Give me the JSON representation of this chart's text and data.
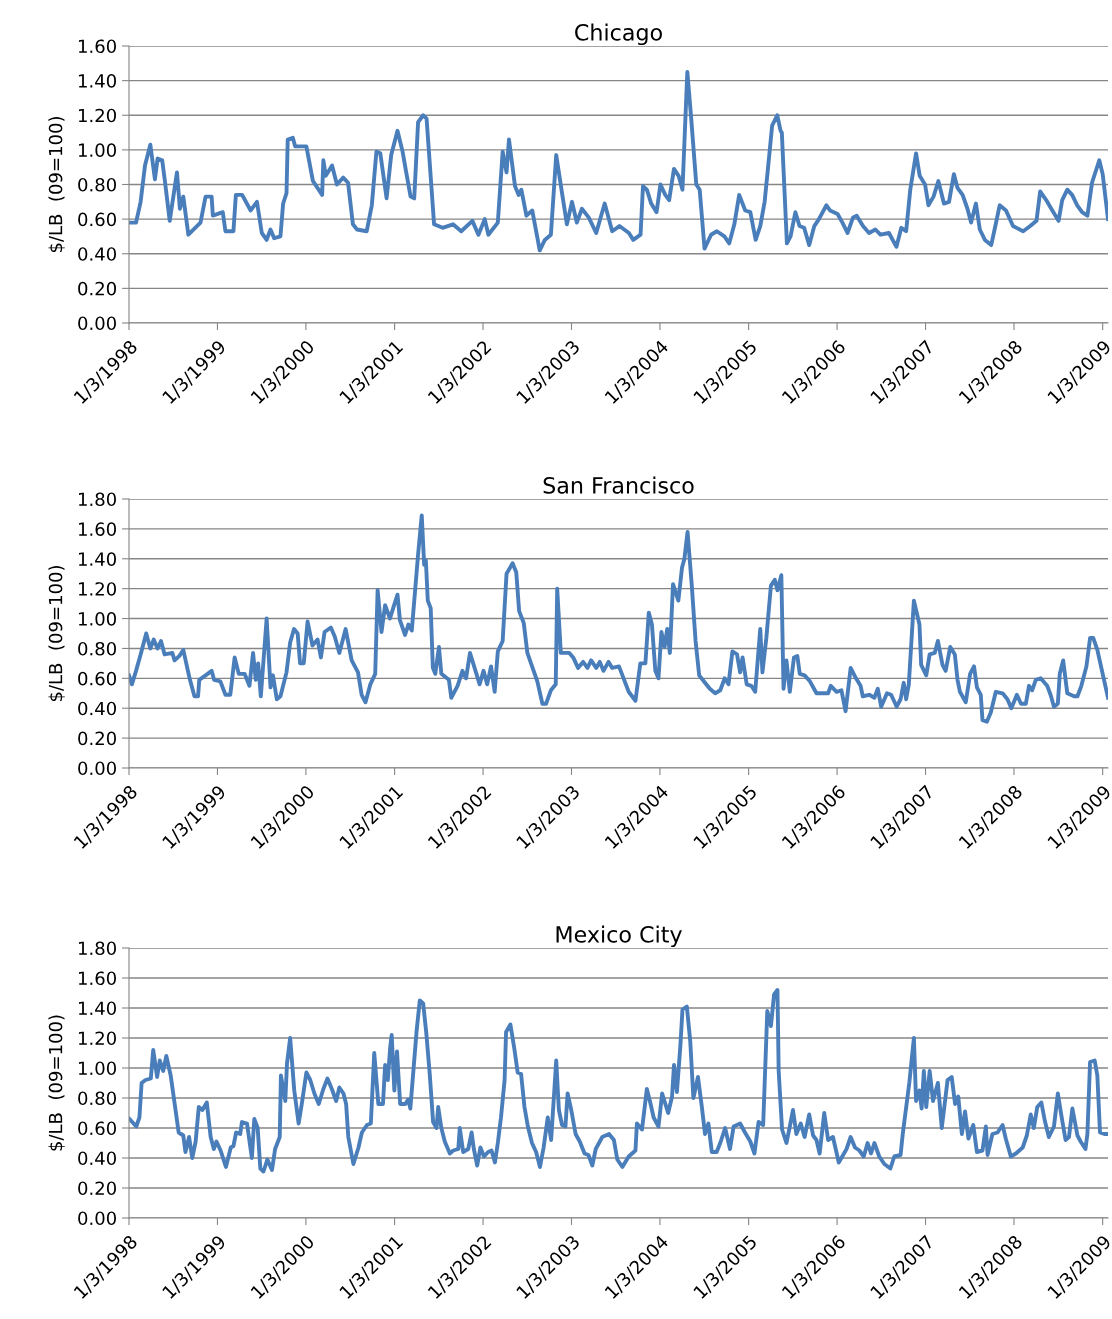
{
  "chart_data": [
    {
      "type": "line",
      "title": "Chicago",
      "ylabel": "$/LB  (09=100)",
      "color": "#4a7ebb",
      "grid": "y",
      "marker": "none",
      "line_style": "solid",
      "xlim": [
        "1998-01-03",
        "2009-01-25"
      ],
      "ylim": [
        0,
        1.6
      ],
      "yticks": [
        {
          "value": 0,
          "label": "0.00"
        },
        {
          "value": 0.2,
          "label": "0.20"
        },
        {
          "value": 0.4,
          "label": "0.40"
        },
        {
          "value": 0.6,
          "label": "0.60"
        },
        {
          "value": 0.8,
          "label": "0.80"
        },
        {
          "value": 1.0,
          "label": "1.00"
        },
        {
          "value": 1.2,
          "label": "1.20"
        },
        {
          "value": 1.4,
          "label": "1.40"
        },
        {
          "value": 1.6,
          "label": "1.60"
        }
      ],
      "xticks": [
        {
          "value": "1998-01-03",
          "label": "1/3/1998"
        },
        {
          "value": "1999-01-03",
          "label": "1/3/1999"
        },
        {
          "value": "2000-01-03",
          "label": "1/3/2000"
        },
        {
          "value": "2001-01-03",
          "label": "1/3/2001"
        },
        {
          "value": "2002-01-03",
          "label": "1/3/2002"
        },
        {
          "value": "2003-01-03",
          "label": "1/3/2003"
        },
        {
          "value": "2004-01-03",
          "label": "1/3/2004"
        },
        {
          "value": "2005-01-03",
          "label": "1/3/2005"
        },
        {
          "value": "2006-01-03",
          "label": "1/3/2006"
        },
        {
          "value": "2007-01-03",
          "label": "1/3/2007"
        },
        {
          "value": "2008-01-03",
          "label": "1/3/2008"
        },
        {
          "value": "2009-01-03",
          "label": "1/3/2009"
        }
      ],
      "x": [
        "1998-01-03",
        "1998-02-01",
        "1998-02-20",
        "1998-03-10",
        "1998-04-01",
        "1998-04-20",
        "1998-05-01",
        "1998-05-20",
        "1998-06-01",
        "1998-06-20",
        "1998-07-20",
        "1998-08-01",
        "1998-08-15",
        "1998-09-05",
        "1998-10-25",
        "1998-11-15",
        "1998-12-10",
        "1998-12-15",
        "1999-01-25",
        "1999-02-05",
        "1999-03-10",
        "1999-03-20",
        "1999-04-15",
        "1999-05-20",
        "1999-06-15",
        "1999-07-05",
        "1999-07-25",
        "1999-08-10",
        "1999-08-25",
        "1999-09-20",
        "1999-10-01",
        "1999-10-15",
        "1999-10-20",
        "1999-11-10",
        "1999-11-20",
        "2000-01-05",
        "2000-02-01",
        "2000-03-10",
        "2000-03-15",
        "2000-03-25",
        "2000-04-20",
        "2000-05-10",
        "2000-06-05",
        "2000-06-25",
        "2000-07-15",
        "2000-08-01",
        "2000-09-10",
        "2000-10-01",
        "2000-10-20",
        "2000-11-05",
        "2000-12-01",
        "2000-12-20",
        "2001-01-15",
        "2001-02-05",
        "2001-02-20",
        "2001-03-10",
        "2001-03-25",
        "2001-04-10",
        "2001-05-01",
        "2001-05-15",
        "2001-06-15",
        "2001-07-20",
        "2001-09-01",
        "2001-10-05",
        "2001-11-20",
        "2001-12-15",
        "2002-01-10",
        "2002-01-25",
        "2002-03-05",
        "2002-03-25",
        "2002-04-10",
        "2002-04-20",
        "2002-05-15",
        "2002-05-30",
        "2002-06-10",
        "2002-07-01",
        "2002-07-25",
        "2002-08-25",
        "2002-09-15",
        "2002-10-10",
        "2002-11-01",
        "2002-11-25",
        "2002-12-15",
        "2003-01-05",
        "2003-01-25",
        "2003-02-15",
        "2003-03-15",
        "2003-04-15",
        "2003-05-20",
        "2003-06-20",
        "2003-07-20",
        "2003-08-28",
        "2003-09-15",
        "2003-10-15",
        "2003-10-25",
        "2003-11-10",
        "2003-11-28",
        "2003-12-20",
        "2004-01-05",
        "2004-01-25",
        "2004-02-10",
        "2004-03-01",
        "2004-03-20",
        "2004-04-05",
        "2004-04-25",
        "2004-05-10",
        "2004-06-01",
        "2004-06-15",
        "2004-07-05",
        "2004-08-01",
        "2004-08-25",
        "2004-09-25",
        "2004-10-15",
        "2004-11-05",
        "2004-11-25",
        "2004-12-20",
        "2005-01-10",
        "2005-02-01",
        "2005-02-20",
        "2005-03-10",
        "2005-03-25",
        "2005-04-10",
        "2005-05-01",
        "2005-05-15",
        "2005-05-20",
        "2005-06-10",
        "2005-06-25",
        "2005-07-15",
        "2005-08-01",
        "2005-08-20",
        "2005-09-10",
        "2005-10-01",
        "2005-10-20",
        "2005-11-20",
        "2005-12-05",
        "2006-01-05",
        "2006-01-25",
        "2006-02-15",
        "2006-03-10",
        "2006-03-25",
        "2006-04-20",
        "2006-05-15",
        "2006-06-10",
        "2006-07-01",
        "2006-08-05",
        "2006-09-05",
        "2006-09-25",
        "2006-10-15",
        "2006-11-01",
        "2006-11-25",
        "2006-12-10",
        "2007-01-01",
        "2007-01-15",
        "2007-02-05",
        "2007-02-25",
        "2007-03-20",
        "2007-04-10",
        "2007-04-30",
        "2007-05-15",
        "2007-06-05",
        "2007-06-25",
        "2007-07-10",
        "2007-07-30",
        "2007-08-15",
        "2007-09-05",
        "2007-10-01",
        "2007-10-15",
        "2007-11-05",
        "2007-12-01",
        "2007-12-30",
        "2008-02-10",
        "2008-03-10",
        "2008-04-05",
        "2008-04-20",
        "2008-05-15",
        "2008-06-05",
        "2008-07-05",
        "2008-07-20",
        "2008-08-10",
        "2008-08-30",
        "2008-09-20",
        "2008-10-10",
        "2008-11-01",
        "2008-11-20",
        "2008-12-20",
        "2009-01-03",
        "2009-01-25"
      ],
      "values": [
        0.58,
        0.58,
        0.7,
        0.91,
        1.03,
        0.83,
        0.95,
        0.94,
        0.81,
        0.59,
        0.87,
        0.66,
        0.73,
        0.51,
        0.58,
        0.73,
        0.73,
        0.62,
        0.64,
        0.53,
        0.53,
        0.74,
        0.74,
        0.65,
        0.7,
        0.52,
        0.48,
        0.54,
        0.49,
        0.5,
        0.69,
        0.75,
        1.06,
        1.07,
        1.02,
        1.02,
        0.82,
        0.74,
        0.94,
        0.85,
        0.91,
        0.8,
        0.84,
        0.81,
        0.57,
        0.54,
        0.53,
        0.68,
        0.99,
        0.98,
        0.72,
        0.97,
        1.11,
        0.99,
        0.87,
        0.73,
        0.72,
        1.16,
        1.2,
        1.18,
        0.57,
        0.55,
        0.57,
        0.53,
        0.59,
        0.51,
        0.6,
        0.51,
        0.58,
        0.99,
        0.87,
        1.06,
        0.79,
        0.74,
        0.77,
        0.62,
        0.65,
        0.42,
        0.48,
        0.51,
        0.97,
        0.75,
        0.57,
        0.7,
        0.58,
        0.66,
        0.61,
        0.52,
        0.69,
        0.53,
        0.56,
        0.52,
        0.48,
        0.51,
        0.79,
        0.77,
        0.69,
        0.64,
        0.8,
        0.74,
        0.71,
        0.89,
        0.85,
        0.77,
        1.45,
        1.2,
        0.8,
        0.77,
        0.43,
        0.51,
        0.53,
        0.5,
        0.46,
        0.57,
        0.74,
        0.65,
        0.64,
        0.48,
        0.56,
        0.7,
        0.91,
        1.14,
        1.2,
        1.11,
        1.1,
        0.46,
        0.5,
        0.64,
        0.56,
        0.55,
        0.45,
        0.56,
        0.6,
        0.68,
        0.65,
        0.63,
        0.58,
        0.52,
        0.61,
        0.62,
        0.56,
        0.52,
        0.54,
        0.51,
        0.52,
        0.44,
        0.55,
        0.53,
        0.77,
        0.98,
        0.85,
        0.8,
        0.68,
        0.73,
        0.82,
        0.69,
        0.7,
        0.86,
        0.78,
        0.74,
        0.66,
        0.58,
        0.69,
        0.54,
        0.48,
        0.45,
        0.54,
        0.68,
        0.65,
        0.56,
        0.53,
        0.56,
        0.59,
        0.76,
        0.71,
        0.66,
        0.59,
        0.71,
        0.77,
        0.74,
        0.68,
        0.64,
        0.62,
        0.81,
        0.94,
        0.86,
        0.6
      ]
    },
    {
      "type": "line",
      "title": "San Francisco",
      "ylabel": "$/LB  (09=100)",
      "color": "#4a7ebb",
      "grid": "y",
      "marker": "none",
      "line_style": "solid",
      "xlim": [
        "1998-01-03",
        "2009-01-25"
      ],
      "ylim": [
        0,
        1.8
      ],
      "yticks": [
        {
          "value": 0,
          "label": "0.00"
        },
        {
          "value": 0.2,
          "label": "0.20"
        },
        {
          "value": 0.4,
          "label": "0.40"
        },
        {
          "value": 0.6,
          "label": "0.60"
        },
        {
          "value": 0.8,
          "label": "0.80"
        },
        {
          "value": 1.0,
          "label": "1.00"
        },
        {
          "value": 1.2,
          "label": "1.20"
        },
        {
          "value": 1.4,
          "label": "1.40"
        },
        {
          "value": 1.6,
          "label": "1.60"
        },
        {
          "value": 1.8,
          "label": "1.80"
        }
      ],
      "xticks": [
        {
          "value": "1998-01-03",
          "label": "1/3/1998"
        },
        {
          "value": "1999-01-03",
          "label": "1/3/1999"
        },
        {
          "value": "2000-01-03",
          "label": "1/3/2000"
        },
        {
          "value": "2001-01-03",
          "label": "1/3/2001"
        },
        {
          "value": "2002-01-03",
          "label": "1/3/2002"
        },
        {
          "value": "2003-01-03",
          "label": "1/3/2003"
        },
        {
          "value": "2004-01-03",
          "label": "1/3/2004"
        },
        {
          "value": "2005-01-03",
          "label": "1/3/2005"
        },
        {
          "value": "2006-01-03",
          "label": "1/3/2006"
        },
        {
          "value": "2007-01-03",
          "label": "1/3/2007"
        },
        {
          "value": "2008-01-03",
          "label": "1/3/2008"
        },
        {
          "value": "2009-01-03",
          "label": "1/3/2009"
        }
      ],
      "x": [
        "1998-01-03",
        "1998-01-15",
        "1998-02-01",
        "1998-02-20",
        "1998-03-15",
        "1998-04-01",
        "1998-04-15",
        "1998-05-01",
        "1998-05-15",
        "1998-05-30",
        "1998-07-01",
        "1998-07-10",
        "1998-07-30",
        "1998-08-15",
        "1998-09-10",
        "1998-09-30",
        "1998-10-15",
        "1998-10-20",
        "1998-11-15",
        "1998-12-10",
        "1998-12-20",
        "1999-01-15",
        "1999-02-05",
        "1999-02-25",
        "1999-03-15",
        "1999-04-01",
        "1999-04-25",
        "1999-05-15",
        "1999-05-30",
        "1999-06-10",
        "1999-06-20",
        "1999-07-01",
        "1999-07-25",
        "1999-08-10",
        "1999-08-20",
        "1999-09-05",
        "1999-09-20",
        "1999-10-15",
        "1999-10-30",
        "1999-11-15",
        "1999-11-30",
        "1999-12-10",
        "1999-12-25",
        "2000-01-10",
        "2000-01-30",
        "2000-02-20",
        "2000-03-05",
        "2000-03-20",
        "2000-04-15",
        "2000-05-01",
        "2000-05-20",
        "2000-06-15",
        "2000-07-10",
        "2000-08-05",
        "2000-08-20",
        "2000-09-05",
        "2000-09-25",
        "2000-10-15",
        "2000-10-25",
        "2000-11-10",
        "2000-11-25",
        "2000-12-15",
        "2001-01-01",
        "2001-01-15",
        "2001-01-25",
        "2001-02-15",
        "2001-03-01",
        "2001-03-15",
        "2001-04-10",
        "2001-04-25",
        "2001-05-05",
        "2001-05-12",
        "2001-05-20",
        "2001-06-01",
        "2001-06-10",
        "2001-06-20",
        "2001-07-05",
        "2001-07-15",
        "2001-08-15",
        "2001-08-25",
        "2001-09-20",
        "2001-10-10",
        "2001-10-25",
        "2001-11-10",
        "2001-12-01",
        "2001-12-20",
        "2002-01-05",
        "2002-01-20",
        "2002-02-05",
        "2002-02-20",
        "2002-03-05",
        "2002-03-25",
        "2002-04-10",
        "2002-05-05",
        "2002-05-20",
        "2002-06-01",
        "2002-06-20",
        "2002-07-05",
        "2002-07-20",
        "2002-08-15",
        "2002-09-05",
        "2002-09-20",
        "2002-10-10",
        "2002-10-30",
        "2002-11-05",
        "2002-11-20",
        "2002-12-05",
        "2002-12-25",
        "2003-01-10",
        "2003-01-30",
        "2003-02-20",
        "2003-03-10",
        "2003-03-25",
        "2003-04-15",
        "2003-04-30",
        "2003-05-15",
        "2003-06-05",
        "2003-06-20",
        "2003-07-18",
        "2003-08-06",
        "2003-08-27",
        "2003-09-24",
        "2003-10-14",
        "2003-11-04",
        "2003-11-18",
        "2003-12-01",
        "2003-12-15",
        "2003-12-28",
        "2004-01-09",
        "2004-01-22",
        "2004-02-02",
        "2004-02-13",
        "2004-02-26",
        "2004-03-19",
        "2004-04-03",
        "2004-04-13",
        "2004-04-26",
        "2004-05-13",
        "2004-05-29",
        "2004-06-13",
        "2004-07-07",
        "2004-07-27",
        "2004-08-18",
        "2004-09-08",
        "2004-09-26",
        "2004-10-12",
        "2004-10-28",
        "2004-11-16",
        "2004-11-29",
        "2004-12-09",
        "2004-12-26",
        "2005-01-14",
        "2005-01-30",
        "2005-02-20",
        "2005-03-01",
        "2005-03-17",
        "2005-04-05",
        "2005-04-21",
        "2005-05-02",
        "2005-05-18",
        "2005-05-27",
        "2005-06-08",
        "2005-06-22",
        "2005-07-09",
        "2005-07-23",
        "2005-08-02",
        "2005-08-22",
        "2005-09-13",
        "2005-10-10",
        "2005-11-07",
        "2005-11-27",
        "2005-12-08",
        "2006-01-01",
        "2006-01-21",
        "2006-02-07",
        "2006-02-28",
        "2006-03-22",
        "2006-04-10",
        "2006-04-19",
        "2006-05-16",
        "2006-06-06",
        "2006-06-20",
        "2006-07-04",
        "2006-07-28",
        "2006-08-14",
        "2006-09-06",
        "2006-09-22",
        "2006-10-05",
        "2006-10-15",
        "2006-10-26",
        "2006-11-16",
        "2006-12-09",
        "2006-12-16",
        "2007-01-06",
        "2007-01-20",
        "2007-02-10",
        "2007-02-23",
        "2007-03-14",
        "2007-03-27",
        "2007-04-15",
        "2007-05-04",
        "2007-05-15",
        "2007-05-25",
        "2007-06-18",
        "2007-07-06",
        "2007-07-22",
        "2007-08-03",
        "2007-08-19",
        "2007-08-26",
        "2007-09-13",
        "2007-09-29",
        "2007-10-20",
        "2007-11-17",
        "2007-12-07",
        "2007-12-23",
        "2008-01-15",
        "2008-02-01",
        "2008-02-21",
        "2008-03-05",
        "2008-03-18",
        "2008-04-02",
        "2008-04-22",
        "2008-05-19",
        "2008-06-02",
        "2008-06-16",
        "2008-07-02",
        "2008-07-10",
        "2008-07-24",
        "2008-08-10",
        "2008-09-07",
        "2008-09-21",
        "2008-10-07",
        "2008-10-28",
        "2008-11-12",
        "2008-11-25",
        "2008-12-12",
        "2009-01-03",
        "2009-01-25"
      ],
      "values": [
        0.62,
        0.56,
        0.65,
        0.76,
        0.9,
        0.8,
        0.86,
        0.8,
        0.85,
        0.76,
        0.77,
        0.72,
        0.75,
        0.79,
        0.6,
        0.48,
        0.48,
        0.59,
        0.62,
        0.65,
        0.59,
        0.58,
        0.49,
        0.49,
        0.74,
        0.63,
        0.63,
        0.55,
        0.77,
        0.59,
        0.7,
        0.48,
        1.0,
        0.54,
        0.62,
        0.46,
        0.48,
        0.64,
        0.84,
        0.93,
        0.9,
        0.7,
        0.7,
        0.98,
        0.82,
        0.86,
        0.74,
        0.91,
        0.94,
        0.88,
        0.77,
        0.93,
        0.72,
        0.64,
        0.49,
        0.44,
        0.56,
        0.63,
        1.19,
        0.91,
        1.09,
        1.0,
        1.09,
        1.16,
        0.99,
        0.89,
        0.96,
        0.92,
        1.43,
        1.69,
        1.36,
        1.39,
        1.12,
        1.07,
        0.67,
        0.63,
        0.81,
        0.63,
        0.59,
        0.47,
        0.55,
        0.65,
        0.6,
        0.77,
        0.66,
        0.56,
        0.65,
        0.56,
        0.68,
        0.51,
        0.78,
        0.85,
        1.3,
        1.37,
        1.31,
        1.05,
        0.97,
        0.77,
        0.7,
        0.58,
        0.43,
        0.43,
        0.52,
        0.56,
        1.2,
        0.77,
        0.77,
        0.77,
        0.74,
        0.67,
        0.71,
        0.67,
        0.72,
        0.67,
        0.71,
        0.65,
        0.71,
        0.67,
        0.68,
        0.6,
        0.51,
        0.45,
        0.7,
        0.7,
        1.04,
        0.96,
        0.65,
        0.6,
        0.91,
        0.81,
        0.93,
        0.77,
        1.23,
        1.12,
        1.34,
        1.4,
        1.58,
        1.23,
        0.85,
        0.62,
        0.57,
        0.53,
        0.5,
        0.52,
        0.6,
        0.56,
        0.78,
        0.76,
        0.64,
        0.74,
        0.56,
        0.55,
        0.51,
        0.93,
        0.64,
        0.87,
        1.22,
        1.26,
        1.19,
        1.29,
        0.53,
        0.72,
        0.51,
        0.74,
        0.75,
        0.63,
        0.62,
        0.58,
        0.5,
        0.5,
        0.5,
        0.55,
        0.51,
        0.52,
        0.38,
        0.67,
        0.6,
        0.55,
        0.48,
        0.49,
        0.47,
        0.53,
        0.41,
        0.5,
        0.49,
        0.41,
        0.46,
        0.57,
        0.46,
        0.56,
        1.12,
        0.96,
        0.69,
        0.62,
        0.76,
        0.77,
        0.85,
        0.69,
        0.65,
        0.81,
        0.76,
        0.59,
        0.51,
        0.44,
        0.63,
        0.68,
        0.54,
        0.49,
        0.32,
        0.31,
        0.37,
        0.51,
        0.5,
        0.46,
        0.4,
        0.49,
        0.43,
        0.43,
        0.55,
        0.52,
        0.59,
        0.6,
        0.55,
        0.49,
        0.41,
        0.43,
        0.63,
        0.72,
        0.5,
        0.48,
        0.48,
        0.55,
        0.68,
        0.87,
        0.87,
        0.79,
        0.63,
        0.47
      ]
    },
    {
      "type": "line",
      "title": "Mexico City",
      "ylabel": "$/LB  (09=100)",
      "color": "#4a7ebb",
      "grid": "y",
      "marker": "none",
      "line_style": "solid",
      "xlim": [
        "1998-01-03",
        "2009-01-25"
      ],
      "ylim": [
        0,
        1.8
      ],
      "yticks": [
        {
          "value": 0,
          "label": "0.00"
        },
        {
          "value": 0.2,
          "label": "0.20"
        },
        {
          "value": 0.4,
          "label": "0.40"
        },
        {
          "value": 0.6,
          "label": "0.60"
        },
        {
          "value": 0.8,
          "label": "0.80"
        },
        {
          "value": 1.0,
          "label": "1.00"
        },
        {
          "value": 1.2,
          "label": "1.20"
        },
        {
          "value": 1.4,
          "label": "1.40"
        },
        {
          "value": 1.6,
          "label": "1.60"
        },
        {
          "value": 1.8,
          "label": "1.80"
        }
      ],
      "xticks": [
        {
          "value": "1998-01-03",
          "label": "1/3/1998"
        },
        {
          "value": "1999-01-03",
          "label": "1/3/1999"
        },
        {
          "value": "2000-01-03",
          "label": "1/3/2000"
        },
        {
          "value": "2001-01-03",
          "label": "1/3/2001"
        },
        {
          "value": "2002-01-03",
          "label": "1/3/2002"
        },
        {
          "value": "2003-01-03",
          "label": "1/3/2003"
        },
        {
          "value": "2004-01-03",
          "label": "1/3/2004"
        },
        {
          "value": "2005-01-03",
          "label": "1/3/2005"
        },
        {
          "value": "2006-01-03",
          "label": "1/3/2006"
        },
        {
          "value": "2007-01-03",
          "label": "1/3/2007"
        },
        {
          "value": "2008-01-03",
          "label": "1/3/2008"
        },
        {
          "value": "2009-01-03",
          "label": "1/3/2009"
        }
      ],
      "x": [
        "1998-01-05",
        "1998-02-02",
        "1998-02-15",
        "1998-02-24",
        "1998-03-12",
        "1998-04-03",
        "1998-04-13",
        "1998-04-29",
        "1998-05-10",
        "1998-05-24",
        "1998-06-06",
        "1998-06-24",
        "1998-07-14",
        "1998-07-27",
        "1998-08-15",
        "1998-08-24",
        "1998-09-08",
        "1998-09-21",
        "1998-10-05",
        "1998-10-18",
        "1998-11-02",
        "1998-11-20",
        "1998-12-06",
        "1998-12-19",
        "1998-12-30",
        "1999-01-16",
        "1999-02-07",
        "1999-02-27",
        "1999-03-10",
        "1999-03-21",
        "1999-04-07",
        "1999-04-14",
        "1999-05-05",
        "1999-05-25",
        "1999-06-04",
        "1999-06-18",
        "1999-06-29",
        "1999-07-12",
        "1999-07-28",
        "1999-08-16",
        "1999-08-29",
        "1999-09-17",
        "1999-09-22",
        "1999-10-10",
        "1999-10-17",
        "1999-10-30",
        "1999-11-16",
        "1999-12-04",
        "1999-12-17",
        "2000-01-05",
        "2000-01-21",
        "2000-02-07",
        "2000-02-25",
        "2000-03-15",
        "2000-04-01",
        "2000-04-19",
        "2000-05-07",
        "2000-05-20",
        "2000-06-06",
        "2000-06-17",
        "2000-06-26",
        "2000-07-17",
        "2000-08-07",
        "2000-08-21",
        "2000-09-11",
        "2000-09-27",
        "2000-10-11",
        "2000-10-28",
        "2000-11-16",
        "2000-11-25",
        "2000-12-06",
        "2000-12-16",
        "2000-12-22",
        "2001-01-02",
        "2001-01-13",
        "2001-01-26",
        "2001-02-16",
        "2001-02-28",
        "2001-03-09",
        "2001-03-20",
        "2001-04-04",
        "2001-04-17",
        "2001-05-01",
        "2001-05-14",
        "2001-05-28",
        "2001-06-11",
        "2001-06-25",
        "2001-07-02",
        "2001-07-15",
        "2001-07-29",
        "2001-08-19",
        "2001-09-02",
        "2001-09-23",
        "2001-09-29",
        "2001-10-13",
        "2001-11-03",
        "2001-11-17",
        "2001-11-26",
        "2001-12-10",
        "2001-12-23",
        "2002-01-07",
        "2002-01-24",
        "2002-02-07",
        "2002-02-21",
        "2002-03-05",
        "2002-03-18",
        "2002-04-02",
        "2002-04-08",
        "2002-04-26",
        "2002-05-12",
        "2002-05-26",
        "2002-06-09",
        "2002-06-23",
        "2002-07-07",
        "2002-07-24",
        "2002-08-10",
        "2002-08-26",
        "2002-09-10",
        "2002-09-27",
        "2002-10-11",
        "2002-11-01",
        "2002-11-12",
        "2002-11-25",
        "2002-12-09",
        "2002-12-18",
        "2003-01-02",
        "2003-01-20",
        "2003-02-06",
        "2003-02-26",
        "2003-03-14",
        "2003-03-30",
        "2003-04-13",
        "2003-05-10",
        "2003-06-07",
        "2003-06-27",
        "2003-07-11",
        "2003-08-01",
        "2003-08-27",
        "2003-09-24",
        "2003-09-30",
        "2003-10-21",
        "2003-11-10",
        "2003-11-24",
        "2003-12-08",
        "2003-12-28",
        "2004-01-12",
        "2004-02-06",
        "2004-02-22",
        "2004-03-01",
        "2004-03-13",
        "2004-03-27",
        "2004-04-05",
        "2004-04-23",
        "2004-05-07",
        "2004-05-20",
        "2004-06-08",
        "2004-06-24",
        "2004-07-07",
        "2004-07-21",
        "2004-08-04",
        "2004-08-24",
        "2004-09-08",
        "2004-09-28",
        "2004-10-18",
        "2004-11-02",
        "2004-11-29",
        "2004-12-19",
        "2005-01-10",
        "2005-01-27",
        "2005-02-13",
        "2005-03-04",
        "2005-03-21",
        "2005-04-05",
        "2005-04-18",
        "2005-05-02",
        "2005-05-07",
        "2005-05-21",
        "2005-06-08",
        "2005-06-22",
        "2005-07-05",
        "2005-07-19",
        "2005-08-06",
        "2005-08-22",
        "2005-09-10",
        "2005-09-26",
        "2005-10-10",
        "2005-10-23",
        "2005-11-11",
        "2005-11-27",
        "2005-12-17",
        "2006-01-10",
        "2006-01-28",
        "2006-02-11",
        "2006-02-28",
        "2006-03-18",
        "2006-04-05",
        "2006-04-23",
        "2006-05-09",
        "2006-05-23",
        "2006-06-06",
        "2006-06-26",
        "2006-07-17",
        "2006-08-11",
        "2006-08-27",
        "2006-09-22",
        "2006-10-01",
        "2006-10-28",
        "2006-11-16",
        "2006-11-25",
        "2006-12-09",
        "2006-12-18",
        "2006-12-27",
        "2007-01-06",
        "2007-01-20",
        "2007-02-03",
        "2007-02-23",
        "2007-03-11",
        "2007-04-04",
        "2007-04-21",
        "2007-05-05",
        "2007-05-18",
        "2007-06-02",
        "2007-06-15",
        "2007-06-29",
        "2007-07-19",
        "2007-08-03",
        "2007-08-26",
        "2007-09-09",
        "2007-09-16",
        "2007-10-06",
        "2007-10-27",
        "2007-11-17",
        "2007-11-30",
        "2007-12-21",
        "2008-01-11",
        "2008-02-08",
        "2008-02-25",
        "2008-03-12",
        "2008-03-25",
        "2008-04-08",
        "2008-04-25",
        "2008-05-09",
        "2008-05-26",
        "2008-06-16",
        "2008-07-02",
        "2008-07-20",
        "2008-08-03",
        "2008-08-17",
        "2008-08-31",
        "2008-09-21",
        "2008-10-04",
        "2008-10-24",
        "2008-11-01",
        "2008-11-12",
        "2008-12-01",
        "2008-12-12",
        "2008-12-23",
        "2009-01-10",
        "2009-01-20"
      ],
      "values": [
        0.66,
        0.61,
        0.67,
        0.9,
        0.92,
        0.93,
        1.12,
        0.94,
        1.05,
        0.98,
        1.08,
        0.95,
        0.72,
        0.57,
        0.55,
        0.44,
        0.54,
        0.4,
        0.51,
        0.74,
        0.72,
        0.77,
        0.54,
        0.46,
        0.51,
        0.45,
        0.34,
        0.47,
        0.48,
        0.57,
        0.56,
        0.64,
        0.63,
        0.4,
        0.66,
        0.6,
        0.33,
        0.31,
        0.39,
        0.32,
        0.46,
        0.54,
        0.95,
        0.78,
        1.03,
        1.2,
        0.85,
        0.63,
        0.76,
        0.97,
        0.92,
        0.83,
        0.76,
        0.86,
        0.93,
        0.86,
        0.78,
        0.87,
        0.83,
        0.76,
        0.54,
        0.36,
        0.47,
        0.57,
        0.62,
        0.63,
        1.1,
        0.76,
        0.76,
        1.02,
        0.92,
        1.14,
        1.22,
        0.85,
        1.11,
        0.76,
        0.76,
        0.79,
        0.73,
        0.95,
        1.25,
        1.45,
        1.43,
        1.23,
        0.96,
        0.64,
        0.6,
        0.74,
        0.6,
        0.51,
        0.43,
        0.45,
        0.46,
        0.6,
        0.44,
        0.46,
        0.57,
        0.46,
        0.35,
        0.47,
        0.41,
        0.44,
        0.45,
        0.37,
        0.5,
        0.67,
        0.92,
        1.24,
        1.29,
        1.13,
        0.97,
        0.96,
        0.74,
        0.61,
        0.5,
        0.44,
        0.34,
        0.47,
        0.67,
        0.52,
        1.05,
        0.72,
        0.62,
        0.61,
        0.83,
        0.72,
        0.56,
        0.51,
        0.43,
        0.42,
        0.35,
        0.46,
        0.54,
        0.56,
        0.52,
        0.39,
        0.34,
        0.41,
        0.45,
        0.63,
        0.59,
        0.86,
        0.77,
        0.67,
        0.61,
        0.83,
        0.7,
        0.81,
        1.02,
        0.84,
        1.14,
        1.39,
        1.41,
        1.18,
        0.8,
        0.94,
        0.74,
        0.56,
        0.63,
        0.44,
        0.44,
        0.5,
        0.6,
        0.46,
        0.61,
        0.63,
        0.57,
        0.51,
        0.43,
        0.64,
        0.62,
        1.38,
        1.28,
        1.49,
        1.52,
        0.98,
        0.59,
        0.5,
        0.61,
        0.72,
        0.56,
        0.63,
        0.54,
        0.69,
        0.55,
        0.52,
        0.43,
        0.7,
        0.52,
        0.54,
        0.37,
        0.42,
        0.46,
        0.54,
        0.47,
        0.45,
        0.41,
        0.5,
        0.43,
        0.5,
        0.41,
        0.36,
        0.33,
        0.41,
        0.42,
        0.56,
        0.9,
        1.2,
        0.78,
        0.85,
        0.73,
        0.98,
        0.74,
        0.98,
        0.78,
        0.9,
        0.6,
        0.92,
        0.94,
        0.76,
        0.81,
        0.56,
        0.71,
        0.53,
        0.62,
        0.44,
        0.45,
        0.61,
        0.42,
        0.56,
        0.57,
        0.62,
        0.53,
        0.41,
        0.43,
        0.47,
        0.55,
        0.69,
        0.6,
        0.74,
        0.77,
        0.65,
        0.54,
        0.61,
        0.83,
        0.65,
        0.52,
        0.54,
        0.73,
        0.55,
        0.51,
        0.46,
        0.56,
        1.04,
        1.05,
        0.95,
        0.57,
        0.56,
        0.56
      ]
    }
  ]
}
